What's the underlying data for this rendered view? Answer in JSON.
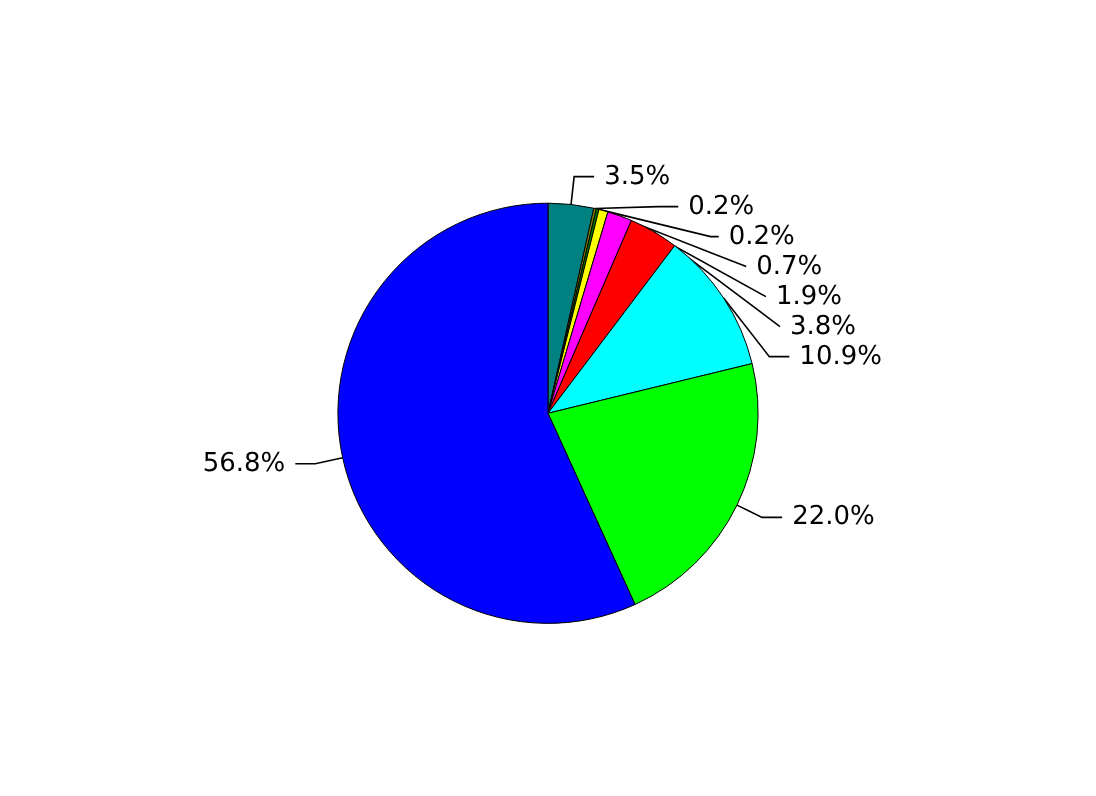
{
  "chart_data": {
    "type": "pie",
    "categories": [
      null,
      null,
      null,
      null,
      null,
      null,
      null,
      null,
      null
    ],
    "values": [
      3.5,
      0.2,
      0.2,
      0.7,
      1.9,
      3.8,
      10.9,
      22.0,
      56.8
    ],
    "value_labels": [
      "3.5%",
      "0.2%",
      "0.2%",
      "0.7%",
      "1.9%",
      "3.8%",
      "10.9%",
      "22.0%",
      "56.8%"
    ],
    "colors": [
      "#008080",
      "#808000",
      "#008000",
      "#ffff00",
      "#ff00ff",
      "#ff0000",
      "#00ffff",
      "#00ff00",
      "#0000ff"
    ]
  }
}
